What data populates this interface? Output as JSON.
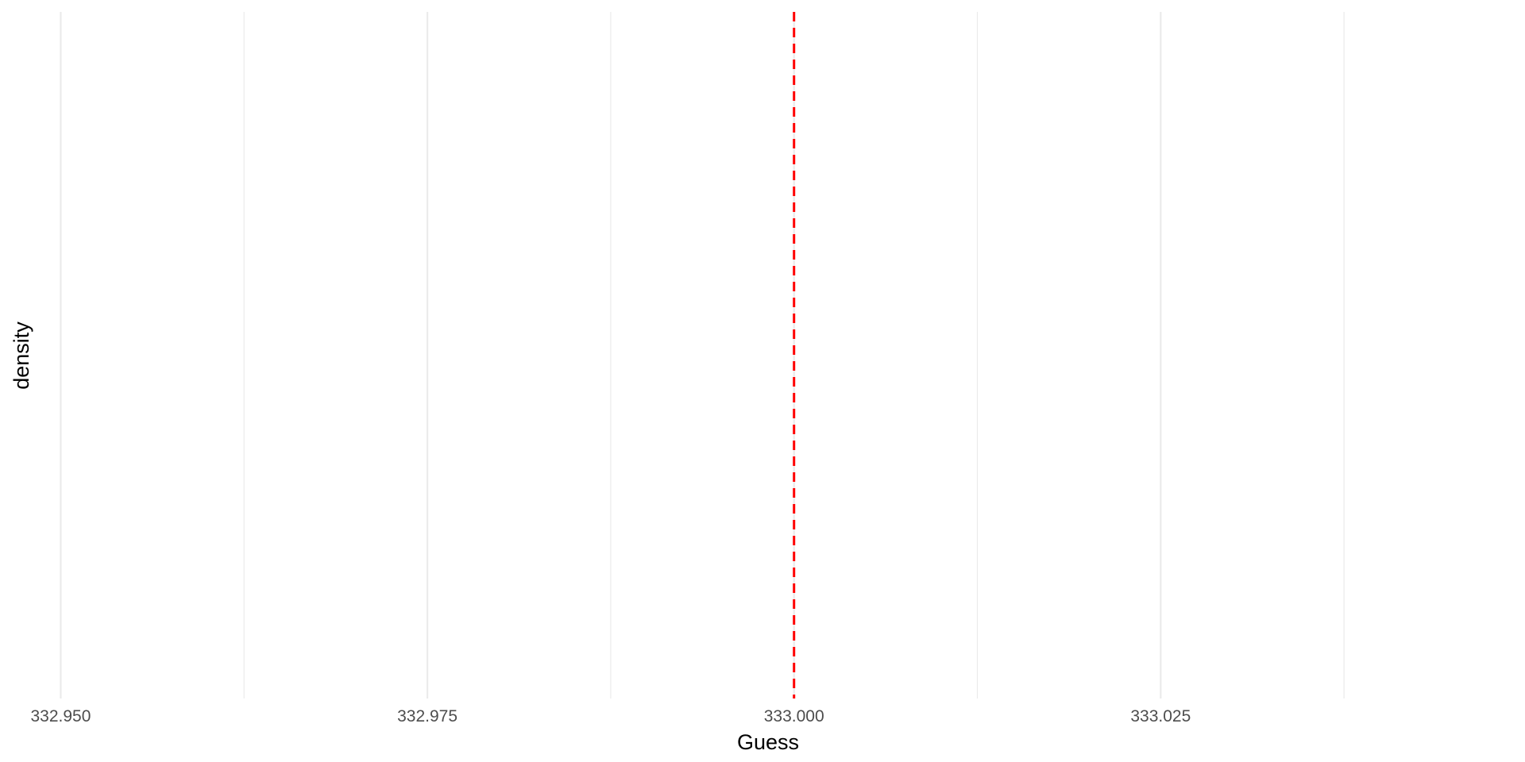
{
  "chart_data": {
    "type": "density",
    "xlabel": "Guess",
    "ylabel": "density",
    "xlim": [
      332.9464,
      333.0493
    ],
    "x_ticks": [
      {
        "value": 332.95,
        "label": "332.950"
      },
      {
        "value": 332.975,
        "label": "332.975"
      },
      {
        "value": 333.0,
        "label": "333.000"
      },
      {
        "value": 333.025,
        "label": "333.025"
      }
    ],
    "x_minor_gridlines": [
      332.9625,
      332.9875,
      333.0125,
      333.0375
    ],
    "y_ticks": [],
    "series": [],
    "reference_lines": [
      {
        "axis": "x",
        "value": 333.0,
        "style": "dashed",
        "color": "#ff0000"
      }
    ],
    "grid": true,
    "grid_color": "#ebebeb",
    "background": "#ffffff",
    "legend": "none"
  }
}
